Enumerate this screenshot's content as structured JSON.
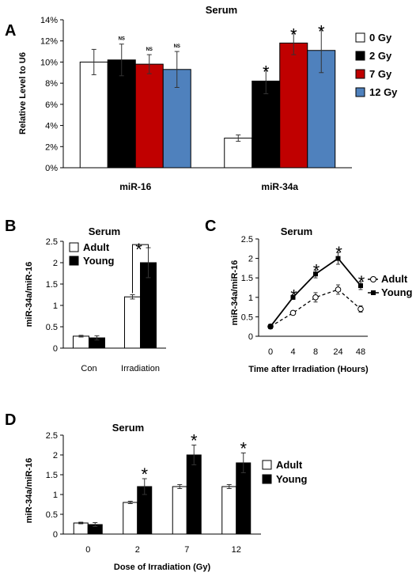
{
  "chart_data": [
    {
      "panel": "A",
      "type": "bar",
      "title": "Serum",
      "ylabel": "Relative Level to U6",
      "ylim": [
        0,
        14
      ],
      "yticks": [
        "0%",
        "2%",
        "4%",
        "6%",
        "8%",
        "10%",
        "12%",
        "14%"
      ],
      "categories": [
        "miR-16",
        "miR-34a"
      ],
      "series": [
        {
          "name": "0 Gy",
          "color": "#ffffff",
          "values": [
            10.0,
            2.8
          ],
          "errors": [
            1.2,
            0.3
          ]
        },
        {
          "name": "2 Gy",
          "color": "#000000",
          "values": [
            10.2,
            8.2
          ],
          "errors": [
            1.5,
            1.2
          ]
        },
        {
          "name": "7 Gy",
          "color": "#c00000",
          "values": [
            9.8,
            11.8
          ],
          "errors": [
            0.9,
            1.1
          ]
        },
        {
          "name": "12 Gy",
          "color": "#4f81bd",
          "values": [
            9.3,
            11.1
          ],
          "errors": [
            1.7,
            2.1
          ]
        }
      ],
      "annotations": [
        [
          "NS",
          "NS",
          "NS"
        ],
        [
          "*",
          "*",
          "*"
        ]
      ],
      "legend": "right"
    },
    {
      "panel": "B",
      "type": "bar",
      "title": "Serum",
      "ylabel": "miR-34a/miR-16",
      "ylim": [
        0,
        2.5
      ],
      "yticks": [
        "0",
        "0.5",
        "1",
        "1.5",
        "2",
        "2.5"
      ],
      "categories": [
        "Con",
        "Irradiation"
      ],
      "series": [
        {
          "name": "Adult",
          "color": "#ffffff",
          "values": [
            0.28,
            1.2
          ],
          "errors": [
            0.02,
            0.05
          ]
        },
        {
          "name": "Young",
          "color": "#000000",
          "values": [
            0.24,
            2.0
          ],
          "errors": [
            0.05,
            0.35
          ]
        }
      ],
      "annotations": [
        "*"
      ],
      "legend": "top-left"
    },
    {
      "panel": "C",
      "type": "line",
      "title": "Serum",
      "ylabel": "miR-34a/miR-16",
      "xlabel": "Time after Irradiation (Hours)",
      "ylim": [
        0,
        2.5
      ],
      "yticks": [
        "0",
        "0.5",
        "1",
        "1.5",
        "2",
        "2.5"
      ],
      "x": [
        "0",
        "4",
        "8",
        "24",
        "48"
      ],
      "series": [
        {
          "name": "Adult",
          "values": [
            0.25,
            0.6,
            1.0,
            1.2,
            0.7
          ],
          "errors": [
            0.03,
            0.05,
            0.12,
            0.12,
            0.08
          ]
        },
        {
          "name": "Young",
          "values": [
            0.25,
            1.0,
            1.6,
            2.0,
            1.3
          ],
          "errors": [
            0.03,
            0.05,
            0.1,
            0.15,
            0.1
          ]
        }
      ],
      "annotations": [
        "*",
        "*",
        "*",
        "*"
      ],
      "legend": "right"
    },
    {
      "panel": "D",
      "type": "bar",
      "title": "Serum",
      "ylabel": "miR-34a/miR-16",
      "xlabel": "Dose of Irradiation (Gy)",
      "ylim": [
        0,
        2.5
      ],
      "yticks": [
        "0",
        "0.5",
        "1",
        "1.5",
        "2",
        "2.5"
      ],
      "categories": [
        "0",
        "2",
        "7",
        "12"
      ],
      "series": [
        {
          "name": "Adult",
          "color": "#ffffff",
          "values": [
            0.28,
            0.8,
            1.2,
            1.2
          ],
          "errors": [
            0.02,
            0.03,
            0.05,
            0.05
          ]
        },
        {
          "name": "Young",
          "color": "#000000",
          "values": [
            0.24,
            1.2,
            2.0,
            1.8
          ],
          "errors": [
            0.05,
            0.2,
            0.25,
            0.25
          ]
        }
      ],
      "annotations": [
        "*",
        "*",
        "*"
      ],
      "legend": "right"
    }
  ]
}
